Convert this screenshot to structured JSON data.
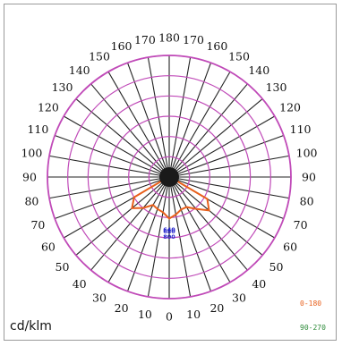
{
  "chart_data": {
    "type": "polar",
    "unit": "cd/klm",
    "angle_labels": [
      {
        "angle": 180,
        "text": "180"
      },
      {
        "angle": 170,
        "text": "170"
      },
      {
        "angle": 160,
        "text": "160"
      },
      {
        "angle": 150,
        "text": "150"
      },
      {
        "angle": 140,
        "text": "140"
      },
      {
        "angle": 130,
        "text": "130"
      },
      {
        "angle": 120,
        "text": "120"
      },
      {
        "angle": 110,
        "text": "110"
      },
      {
        "angle": 100,
        "text": "100"
      },
      {
        "angle": 90,
        "text": "90"
      },
      {
        "angle": 80,
        "text": "80"
      },
      {
        "angle": 70,
        "text": "70"
      },
      {
        "angle": 60,
        "text": "60"
      },
      {
        "angle": 50,
        "text": "50"
      },
      {
        "angle": 40,
        "text": "40"
      },
      {
        "angle": 30,
        "text": "30"
      },
      {
        "angle": 20,
        "text": "20"
      },
      {
        "angle": 10,
        "text": "10"
      },
      {
        "angle": 0,
        "text": "0"
      }
    ],
    "radial_ticks": [
      {
        "value": 640,
        "text": "640"
      },
      {
        "value": 680,
        "text": "680"
      },
      {
        "value": 800,
        "text": "800"
      }
    ],
    "series": [
      {
        "name": "0-180",
        "color": "#e8601c",
        "points": [
          [
            -90,
            0
          ],
          [
            -80,
            5
          ],
          [
            -70,
            25
          ],
          [
            -60,
            350
          ],
          [
            -50,
            420
          ],
          [
            -40,
            350
          ],
          [
            -30,
            280
          ],
          [
            -20,
            295
          ],
          [
            -10,
            310
          ],
          [
            0,
            360
          ],
          [
            10,
            330
          ],
          [
            20,
            300
          ],
          [
            30,
            300
          ],
          [
            40,
            360
          ],
          [
            50,
            450
          ],
          [
            60,
            380
          ],
          [
            70,
            25
          ],
          [
            80,
            5
          ],
          [
            90,
            0
          ]
        ]
      },
      {
        "name": "90-270",
        "color": "#2e8b3a",
        "points": []
      }
    ]
  }
}
